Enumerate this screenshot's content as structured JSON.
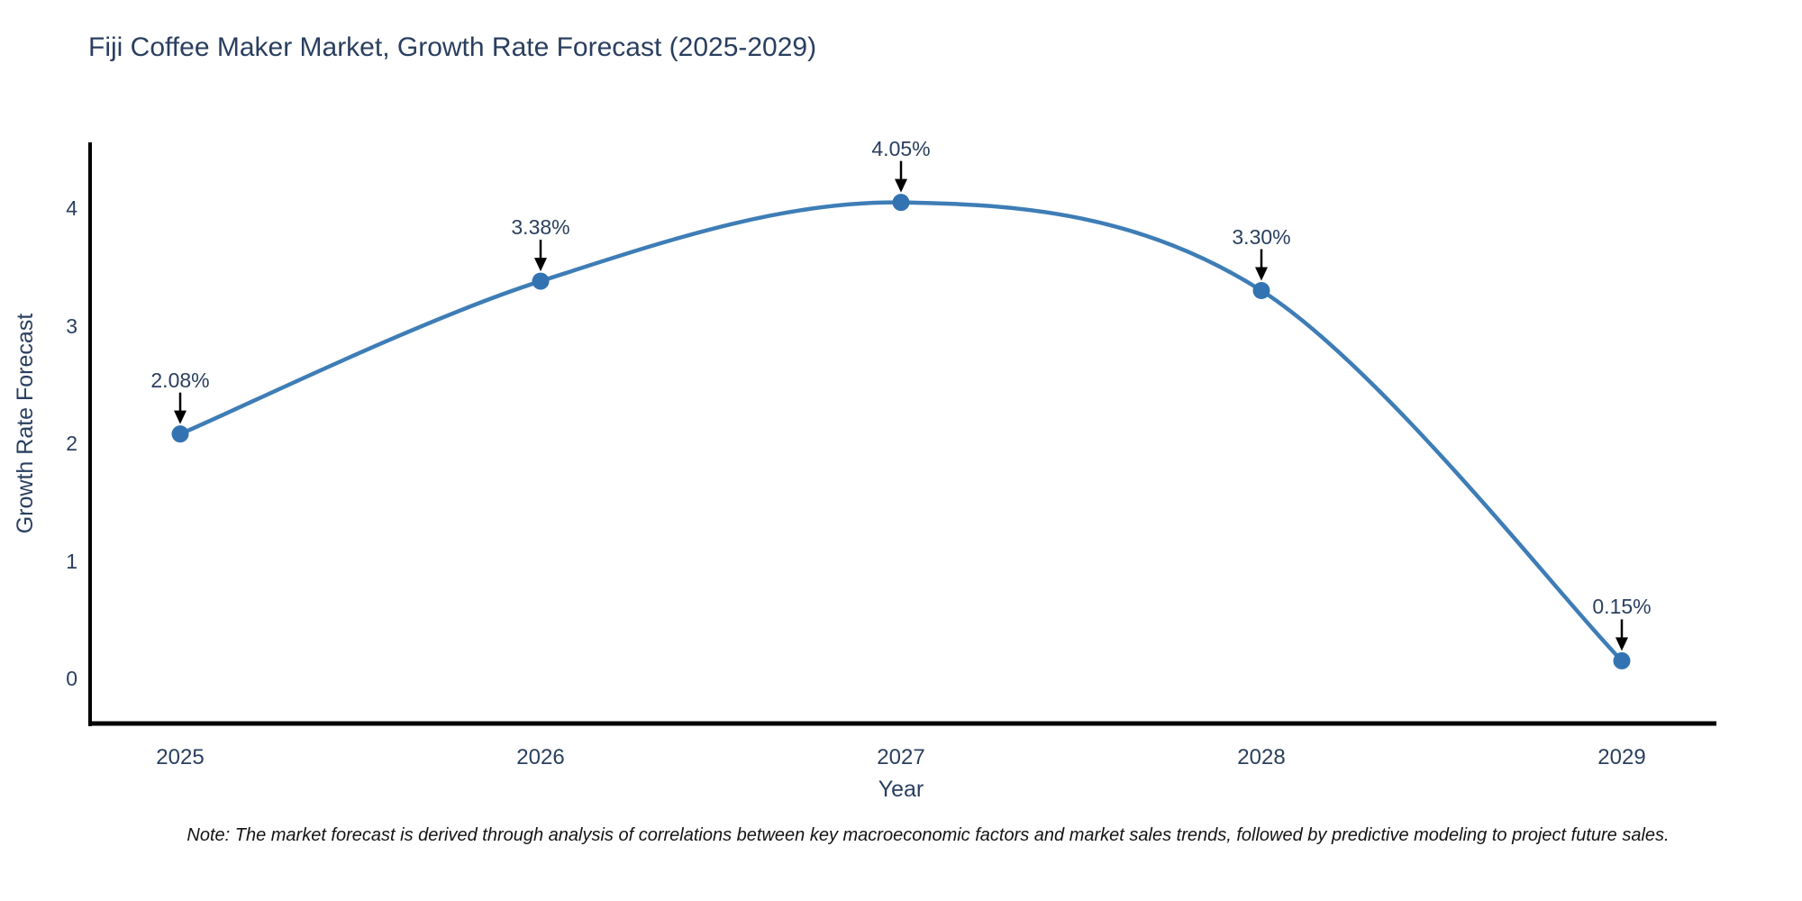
{
  "page": {
    "title": "Fiji Coffee Maker Market, Growth Rate Forecast (2025-2029)",
    "note": "Note: The market forecast is derived through analysis of correlations between key macroeconomic factors and market sales trends, followed by predictive modeling to project future sales."
  },
  "chart_data": {
    "type": "line",
    "title": "Fiji Coffee Maker Market, Growth Rate Forecast (2025-2029)",
    "x": [
      2025,
      2026,
      2027,
      2028,
      2029
    ],
    "values": [
      2.08,
      3.38,
      4.05,
      3.3,
      0.15
    ],
    "point_labels": [
      "2.08%",
      "3.38%",
      "4.05%",
      "3.30%",
      "0.15%"
    ],
    "series_name": "Growth Rate Forecast",
    "xlabel": "Year",
    "ylabel": "Growth Rate Forecast",
    "xticks": [
      "2025",
      "2026",
      "2027",
      "2028",
      "2029"
    ],
    "yticks": [
      0,
      1,
      2,
      3,
      4
    ],
    "ylim": [
      -0.38,
      4.56
    ],
    "xlim": [
      2024.75,
      2029.26
    ],
    "line_shape": "spline",
    "grid": false,
    "legend_position": "none",
    "annotations_have_arrows": true,
    "note": "Note: The market forecast is derived through analysis of correlations between key macroeconomic factors and market sales trends, followed by predictive modeling to project future sales.",
    "colors": {
      "line": "#3e7db6",
      "marker": "#3473b2",
      "axis": "#000000",
      "text": "#2a3f5f",
      "arrow": "#000000",
      "background": "#ffffff"
    }
  }
}
